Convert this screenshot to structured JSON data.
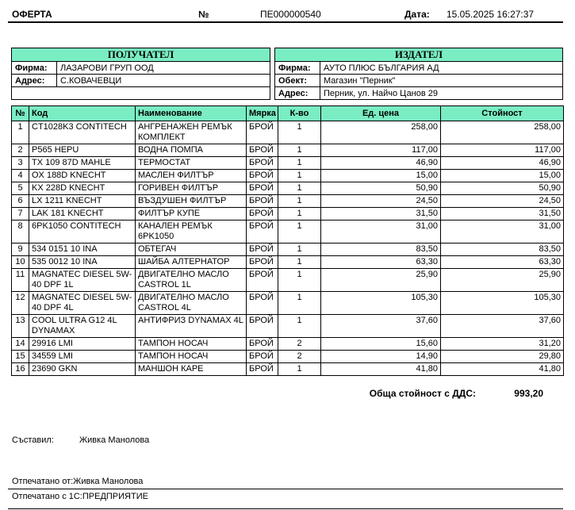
{
  "colors": {
    "header_bg": "#7aedc3",
    "border": "#000000"
  },
  "meta": {
    "title": "ОФЕРТА",
    "number_label": "№",
    "number_value": "ПЕ000000540",
    "date_label": "Дата:",
    "date_value": "15.05.2025 16:27:37"
  },
  "recipient": {
    "header": "ПОЛУЧАТЕЛ",
    "rows": [
      {
        "label": "Фирма:",
        "value": "ЛАЗАРОВИ ГРУП ООД"
      },
      {
        "label": "Адрес:",
        "value": "С.КОВАЧЕВЦИ"
      }
    ]
  },
  "issuer": {
    "header": "ИЗДАТЕЛ",
    "rows": [
      {
        "label": "Фирма:",
        "value": "АУТО ПЛЮС БЪЛГАРИЯ АД"
      },
      {
        "label": "Обект:",
        "value": "Магазин \"Перник\""
      },
      {
        "label": "Адрес:",
        "value": "Перник, ул. Найчо Цанов 29"
      }
    ]
  },
  "items_table": {
    "headers": [
      "№",
      "Код",
      "Наименование",
      "Мярка",
      "К-во",
      "Ед. цена",
      "Стойност"
    ],
    "column_aligns": [
      "c",
      "l",
      "l",
      "l",
      "c",
      "r",
      "r"
    ],
    "rows": [
      [
        "1",
        "CT1028K3 CONTITECH",
        "АНГРЕНАЖЕН РЕМЪК КОМПЛЕКТ",
        "БРОЙ",
        "1",
        "258,00",
        "258,00"
      ],
      [
        "2",
        "P565 HEPU",
        "ВОДНА ПОМПА",
        "БРОЙ",
        "1",
        "117,00",
        "117,00"
      ],
      [
        "3",
        "TX 109 87D MAHLE",
        "ТЕРМОСТАТ",
        "БРОЙ",
        "1",
        "46,90",
        "46,90"
      ],
      [
        "4",
        "OX 188D KNECHT",
        "МАСЛЕН ФИЛТЪР",
        "БРОЙ",
        "1",
        "15,00",
        "15,00"
      ],
      [
        "5",
        "KX 228D KNECHT",
        "ГОРИВЕН ФИЛТЪР",
        "БРОЙ",
        "1",
        "50,90",
        "50,90"
      ],
      [
        "6",
        "LX 1211 KNECHT",
        "ВЪЗДУШЕН ФИЛТЪР",
        "БРОЙ",
        "1",
        "24,50",
        "24,50"
      ],
      [
        "7",
        "LAK 181 KNECHT",
        "ФИЛТЪР КУПЕ",
        "БРОЙ",
        "1",
        "31,50",
        "31,50"
      ],
      [
        "8",
        "6PK1050 CONTITECH",
        "КАНАЛЕН РЕМЪК 6PK1050",
        "БРОЙ",
        "1",
        "31,00",
        "31,00"
      ],
      [
        "9",
        "534 0151 10 INA",
        "ОБТЕГАЧ",
        "БРОЙ",
        "1",
        "83,50",
        "83,50"
      ],
      [
        "10",
        "535 0012 10 INA",
        "ШАЙБА АЛТЕРНАТОР",
        "БРОЙ",
        "1",
        "63,30",
        "63,30"
      ],
      [
        "11",
        "MAGNATEC DIESEL 5W-40 DPF 1L",
        "ДВИГАТЕЛНО МАСЛО CASTROL 1L",
        "БРОЙ",
        "1",
        "25,90",
        "25,90"
      ],
      [
        "12",
        "MAGNATEC DIESEL 5W-40 DPF 4L",
        "ДВИГАТЕЛНО МАСЛО CASTROL 4L",
        "БРОЙ",
        "1",
        "105,30",
        "105,30"
      ],
      [
        "13",
        "COOL ULTRA G12 4L DYNAMAX",
        "АНТИФРИЗ DYNAMAX 4L",
        "БРОЙ",
        "1",
        "37,60",
        "37,60"
      ],
      [
        "14",
        "29916 LMI",
        "ТАМПОН НОСАЧ",
        "БРОЙ",
        "2",
        "15,60",
        "31,20"
      ],
      [
        "15",
        "34559 LMI",
        "ТАМПОН НОСАЧ",
        "БРОЙ",
        "2",
        "14,90",
        "29,80"
      ],
      [
        "16",
        "23690 GKN",
        "МАНШОН КАРЕ",
        "БРОЙ",
        "1",
        "41,80",
        "41,80"
      ]
    ]
  },
  "total": {
    "label": "Обща стойност с ДДС:",
    "value": "993,20"
  },
  "composed": {
    "label": "Съставил:",
    "value": "Живка Манолова"
  },
  "footer": {
    "printed_by_label": "Отпечатано от:",
    "printed_by_value": "Живка Манолова",
    "printed_with": "Отпечатано с 1С:ПРЕДПРИЯТИЕ"
  }
}
